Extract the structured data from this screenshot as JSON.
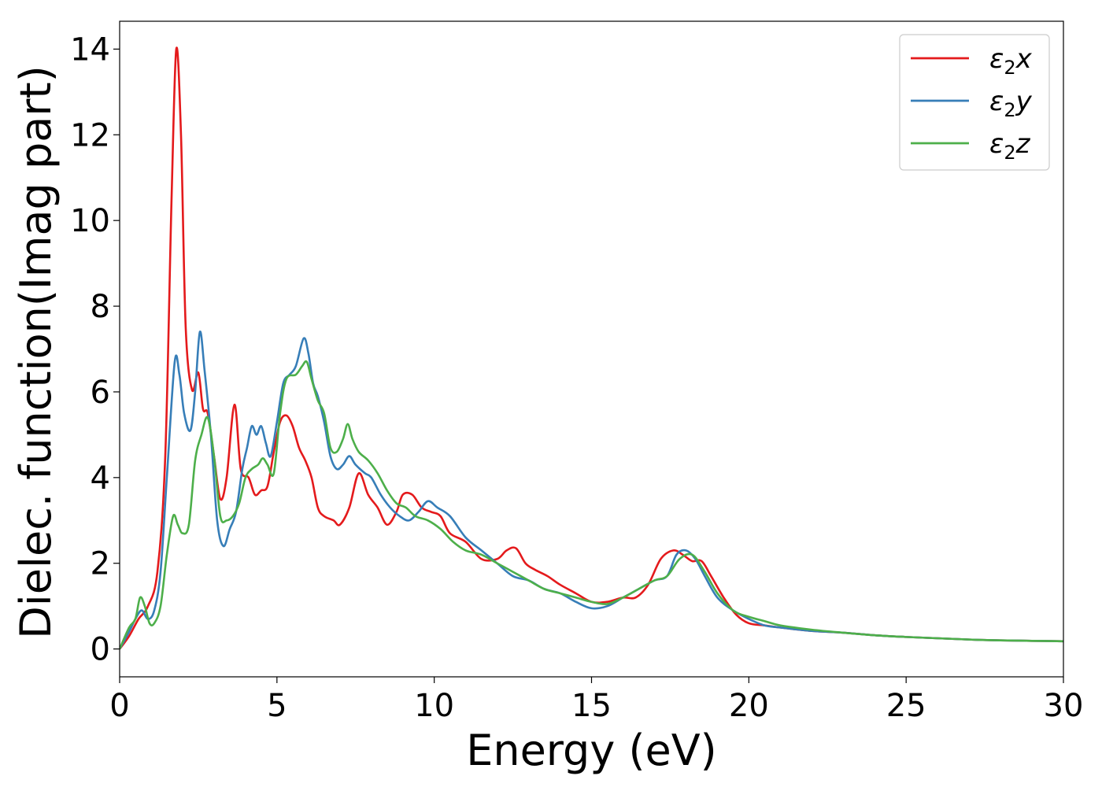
{
  "chart_data": {
    "type": "line",
    "title": "",
    "xlabel": "Energy (eV)",
    "ylabel": "Dielec. function(Imag part)",
    "xlim": [
      0,
      30
    ],
    "ylim": [
      -0.65,
      14.65
    ],
    "xticks": [
      0,
      5,
      10,
      15,
      20,
      25,
      30
    ],
    "yticks": [
      0,
      2,
      4,
      6,
      8,
      10,
      12,
      14
    ],
    "grid": false,
    "legend_position": "top-right",
    "series": [
      {
        "name_base": "ε",
        "name_sub": "2",
        "name_comp": "x",
        "color": "#e41a1c",
        "x": [
          0,
          0.3,
          0.6,
          0.9,
          1.2,
          1.45,
          1.65,
          1.8,
          1.95,
          2.1,
          2.3,
          2.5,
          2.65,
          2.8,
          3.0,
          3.2,
          3.4,
          3.65,
          3.85,
          4.1,
          4.3,
          4.5,
          4.7,
          4.9,
          5.1,
          5.3,
          5.5,
          5.7,
          5.9,
          6.1,
          6.3,
          6.5,
          6.8,
          7.0,
          7.3,
          7.6,
          7.9,
          8.2,
          8.5,
          8.8,
          9.0,
          9.3,
          9.6,
          9.9,
          10.2,
          10.5,
          11.0,
          11.5,
          12.0,
          12.3,
          12.6,
          12.9,
          13.2,
          13.6,
          14.0,
          14.5,
          15.0,
          15.5,
          16.0,
          16.4,
          16.8,
          17.2,
          17.6,
          17.9,
          18.2,
          18.5,
          18.8,
          19.2,
          19.6,
          20.0,
          20.5,
          21,
          22,
          23,
          24,
          25,
          26,
          27,
          28,
          29,
          30
        ],
        "y": [
          0,
          0.3,
          0.7,
          1.0,
          1.8,
          4.5,
          10.5,
          14.0,
          12.0,
          7.5,
          6.05,
          6.45,
          5.6,
          5.5,
          4.5,
          3.5,
          4.0,
          5.7,
          4.2,
          4.0,
          3.6,
          3.7,
          3.8,
          4.6,
          5.3,
          5.45,
          5.2,
          4.7,
          4.4,
          4.0,
          3.3,
          3.1,
          3.0,
          2.9,
          3.3,
          4.1,
          3.6,
          3.3,
          2.9,
          3.2,
          3.6,
          3.6,
          3.3,
          3.2,
          3.1,
          2.7,
          2.5,
          2.1,
          2.1,
          2.3,
          2.35,
          2.0,
          1.85,
          1.7,
          1.5,
          1.3,
          1.1,
          1.1,
          1.2,
          1.2,
          1.5,
          2.1,
          2.3,
          2.2,
          2.05,
          2.05,
          1.7,
          1.2,
          0.8,
          0.6,
          0.55,
          0.5,
          0.42,
          0.38,
          0.32,
          0.28,
          0.25,
          0.22,
          0.2,
          0.19,
          0.18
        ]
      },
      {
        "name_base": "ε",
        "name_sub": "2",
        "name_comp": "y",
        "color": "#377eb8",
        "x": [
          0,
          0.3,
          0.5,
          0.7,
          0.9,
          1.1,
          1.3,
          1.5,
          1.75,
          1.9,
          2.05,
          2.25,
          2.4,
          2.55,
          2.7,
          2.9,
          3.1,
          3.3,
          3.5,
          3.7,
          3.9,
          4.05,
          4.2,
          4.35,
          4.5,
          4.65,
          4.8,
          5.0,
          5.2,
          5.4,
          5.6,
          5.85,
          6.0,
          6.15,
          6.3,
          6.5,
          6.7,
          6.9,
          7.1,
          7.3,
          7.5,
          7.8,
          8.0,
          8.3,
          8.6,
          8.9,
          9.2,
          9.5,
          9.8,
          10.1,
          10.5,
          11.0,
          11.5,
          12.0,
          12.5,
          13.0,
          13.5,
          14.0,
          14.5,
          15.0,
          15.5,
          16.0,
          16.5,
          17.0,
          17.4,
          17.7,
          18.0,
          18.3,
          18.6,
          19.0,
          19.5,
          20.0,
          20.5,
          21,
          22,
          23,
          24,
          25,
          26,
          27,
          28,
          29,
          30
        ],
        "y": [
          0,
          0.4,
          0.7,
          0.9,
          0.7,
          0.9,
          1.8,
          4.0,
          6.7,
          6.4,
          5.5,
          5.1,
          6.0,
          7.4,
          6.5,
          5.0,
          3.0,
          2.4,
          2.8,
          3.2,
          4.2,
          4.7,
          5.2,
          5.0,
          5.2,
          4.8,
          4.5,
          5.3,
          6.2,
          6.4,
          6.6,
          7.25,
          6.9,
          6.2,
          5.9,
          5.3,
          4.5,
          4.2,
          4.3,
          4.5,
          4.3,
          4.1,
          4.0,
          3.6,
          3.3,
          3.1,
          3.0,
          3.2,
          3.45,
          3.3,
          3.1,
          2.6,
          2.3,
          2.0,
          1.7,
          1.6,
          1.4,
          1.3,
          1.1,
          0.95,
          1.0,
          1.2,
          1.4,
          1.6,
          1.7,
          2.2,
          2.3,
          2.1,
          1.7,
          1.2,
          0.9,
          0.7,
          0.55,
          0.5,
          0.42,
          0.38,
          0.32,
          0.28,
          0.25,
          0.22,
          0.2,
          0.19,
          0.18
        ]
      },
      {
        "name_base": "ε",
        "name_sub": "2",
        "name_comp": "z",
        "color": "#4daf4a",
        "x": [
          0,
          0.3,
          0.5,
          0.65,
          0.8,
          0.95,
          1.1,
          1.3,
          1.5,
          1.7,
          1.85,
          2.0,
          2.2,
          2.4,
          2.6,
          2.8,
          3.0,
          3.2,
          3.4,
          3.6,
          3.8,
          4.0,
          4.2,
          4.4,
          4.55,
          4.7,
          4.9,
          5.1,
          5.3,
          5.6,
          5.8,
          5.95,
          6.1,
          6.3,
          6.5,
          6.7,
          6.9,
          7.1,
          7.25,
          7.4,
          7.6,
          7.9,
          8.2,
          8.5,
          8.8,
          9.1,
          9.4,
          9.8,
          10.2,
          10.6,
          11.0,
          11.5,
          12.0,
          12.5,
          13.0,
          13.5,
          14.0,
          14.5,
          15.0,
          15.5,
          16.0,
          16.5,
          17.0,
          17.4,
          17.8,
          18.2,
          18.6,
          19.0,
          19.5,
          20.0,
          20.5,
          21,
          22,
          23,
          24,
          25,
          26,
          27,
          28,
          29,
          30
        ],
        "y": [
          0,
          0.5,
          0.7,
          1.2,
          1.0,
          0.6,
          0.6,
          1.0,
          2.2,
          3.1,
          2.9,
          2.7,
          2.9,
          4.4,
          5.0,
          5.4,
          4.5,
          3.1,
          3.0,
          3.1,
          3.4,
          4.0,
          4.2,
          4.3,
          4.45,
          4.3,
          4.1,
          5.5,
          6.3,
          6.4,
          6.6,
          6.7,
          6.3,
          5.8,
          5.5,
          4.7,
          4.6,
          4.9,
          5.25,
          4.9,
          4.6,
          4.4,
          4.1,
          3.7,
          3.4,
          3.3,
          3.1,
          3.0,
          2.8,
          2.5,
          2.3,
          2.2,
          2.0,
          1.8,
          1.6,
          1.4,
          1.3,
          1.2,
          1.1,
          1.05,
          1.2,
          1.4,
          1.6,
          1.7,
          2.1,
          2.2,
          1.8,
          1.3,
          0.9,
          0.75,
          0.65,
          0.55,
          0.45,
          0.38,
          0.32,
          0.28,
          0.25,
          0.22,
          0.2,
          0.19,
          0.18
        ]
      }
    ]
  }
}
